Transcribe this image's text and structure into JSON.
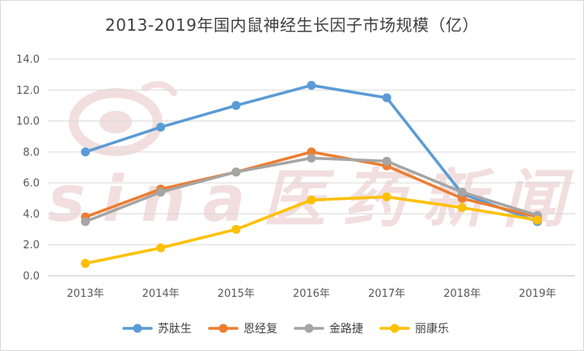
{
  "chart_data": {
    "type": "line",
    "title": "2013-2019年国内鼠神经生长因子市场规模（亿）",
    "categories": [
      "2013年",
      "2014年",
      "2015年",
      "2016年",
      "2017年",
      "2018年",
      "2019年"
    ],
    "ylim": [
      0,
      14
    ],
    "yticks": [
      "0.0",
      "2.0",
      "4.0",
      "6.0",
      "8.0",
      "10.0",
      "12.0",
      "14.0"
    ],
    "grid": true,
    "legend_position": "bottom",
    "series": [
      {
        "name": "苏肽生",
        "color": "#5b9bd5",
        "values": [
          8.0,
          9.6,
          11.0,
          12.3,
          11.5,
          5.3,
          3.5
        ]
      },
      {
        "name": "恩经复",
        "color": "#ed7d31",
        "values": [
          3.8,
          5.6,
          6.7,
          8.0,
          7.1,
          5.0,
          3.8
        ]
      },
      {
        "name": "金路捷",
        "color": "#a5a5a5",
        "values": [
          3.5,
          5.4,
          6.7,
          7.6,
          7.4,
          5.4,
          3.9
        ]
      },
      {
        "name": "丽康乐",
        "color": "#ffc000",
        "values": [
          0.8,
          1.8,
          3.0,
          4.9,
          5.1,
          4.4,
          3.6
        ]
      }
    ]
  },
  "watermark": {
    "text": "sina医药新闻",
    "color": "#f2dede"
  }
}
